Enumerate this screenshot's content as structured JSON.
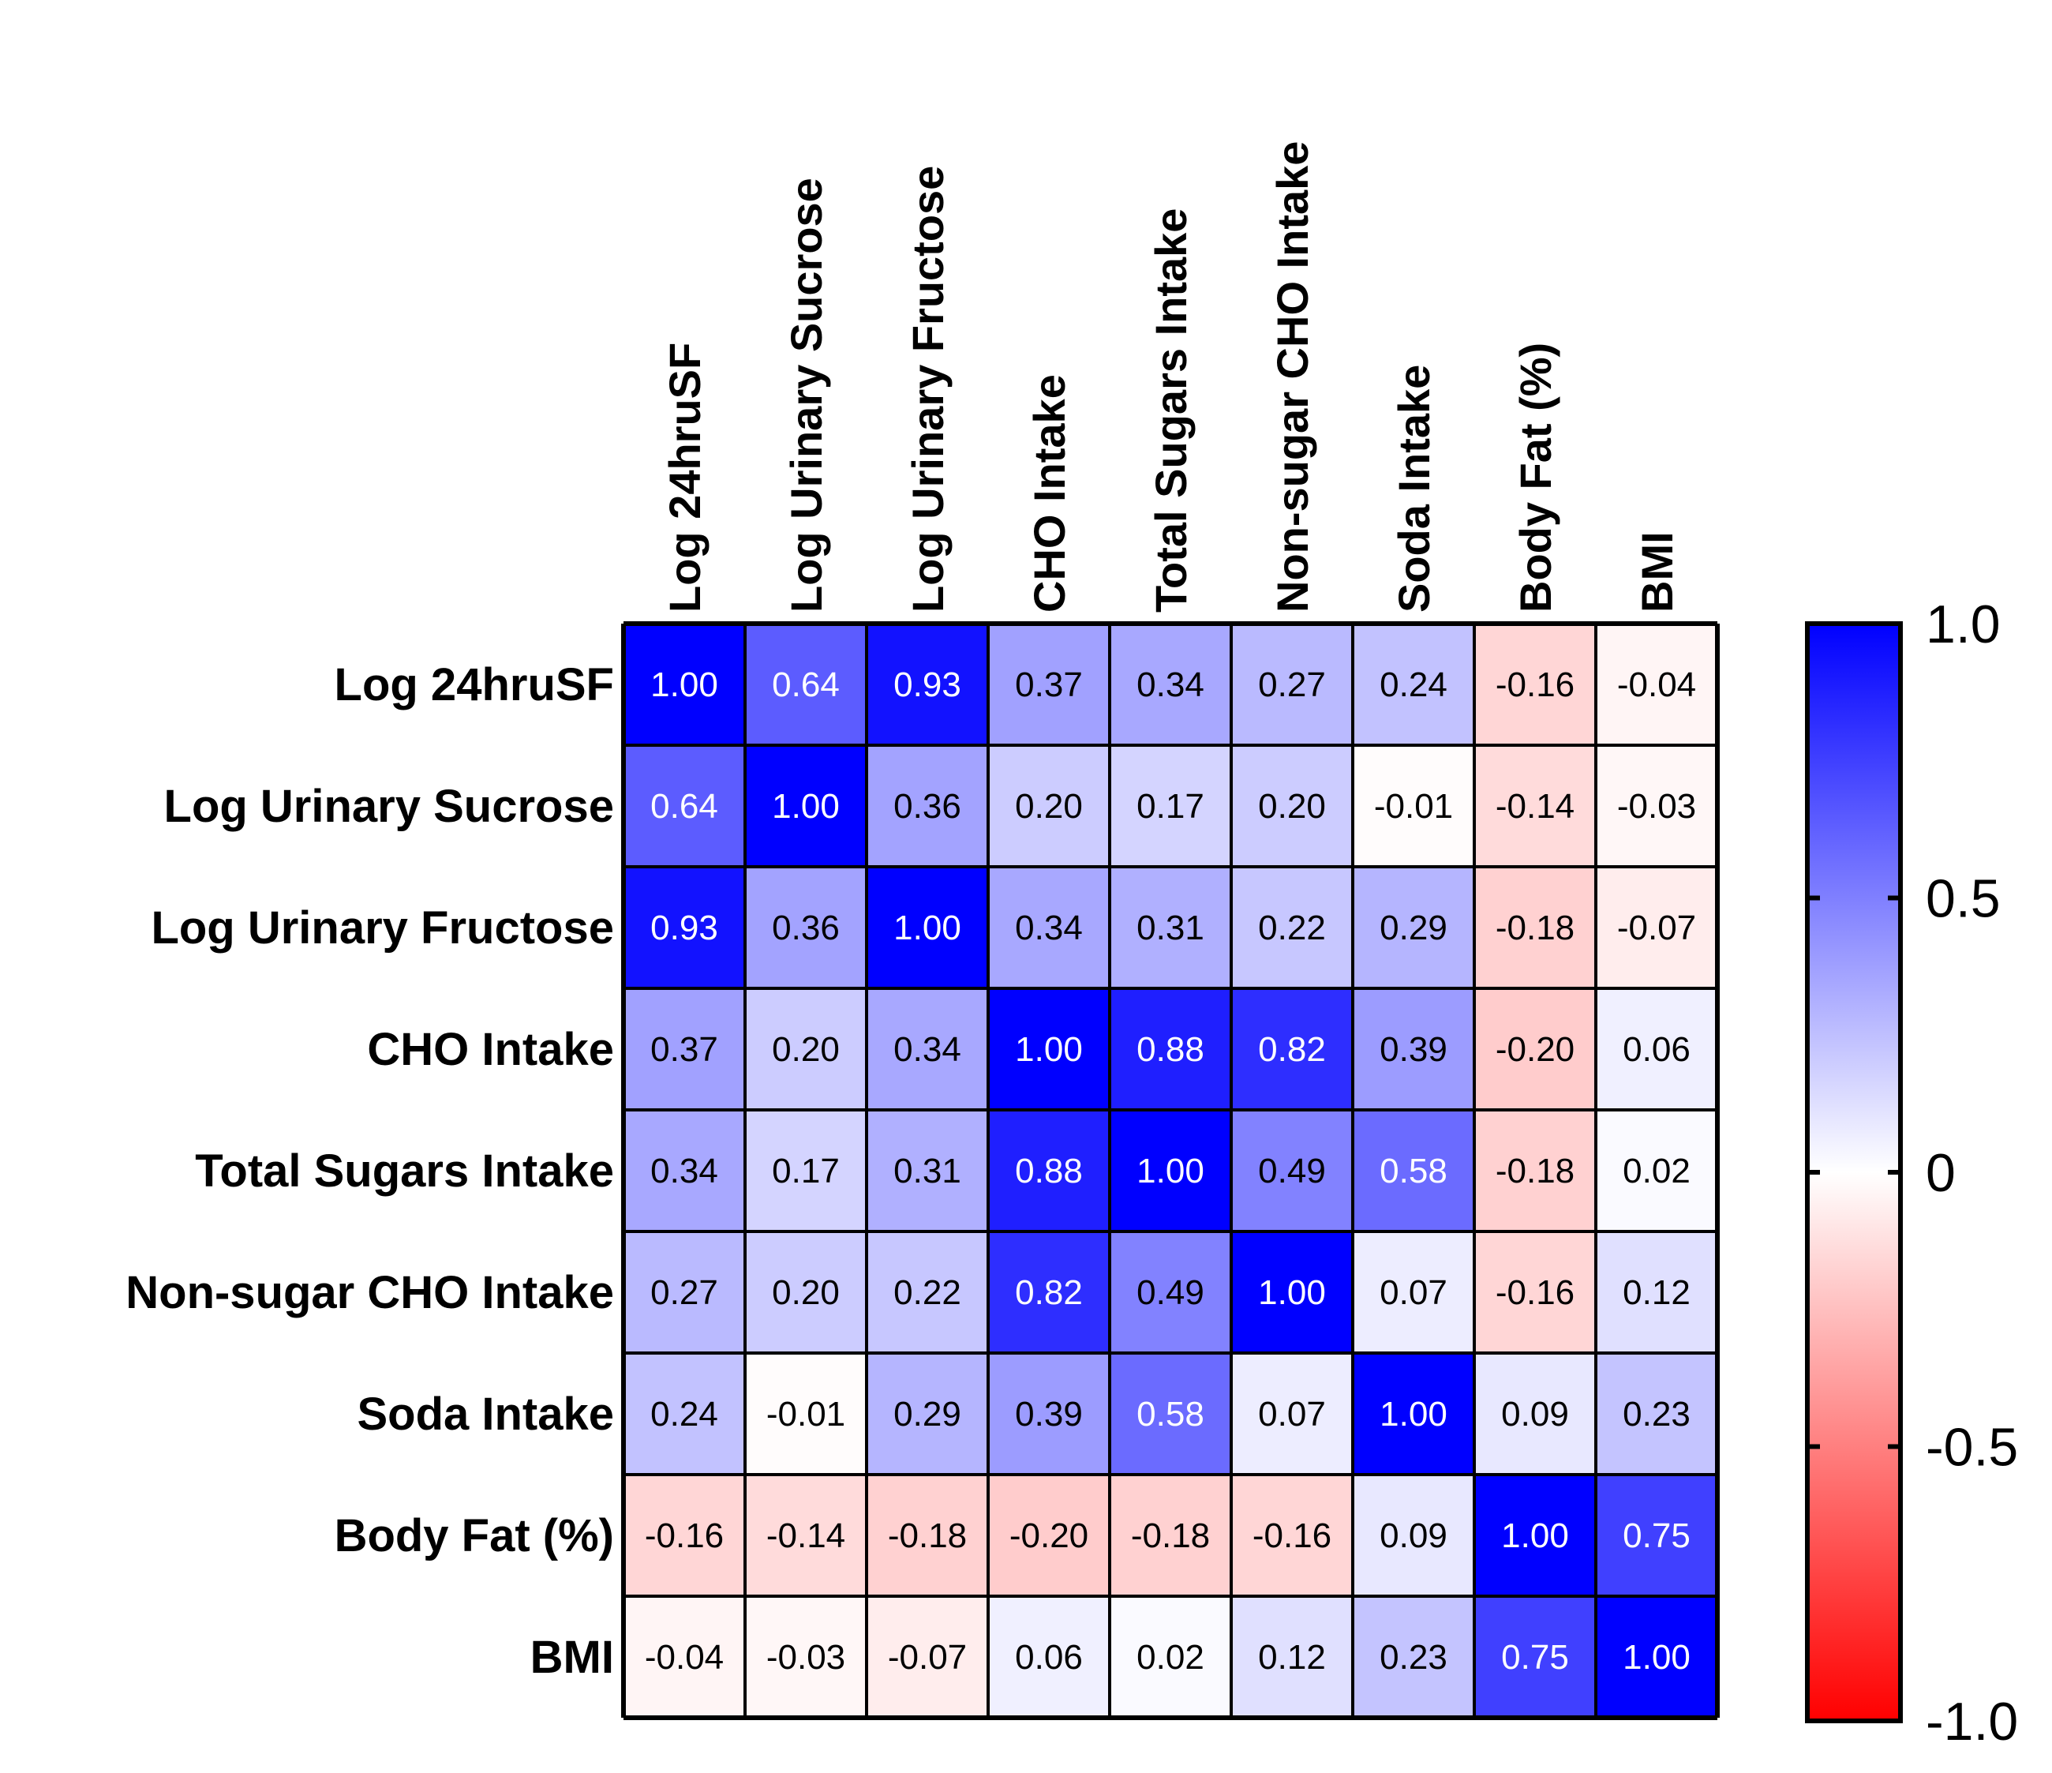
{
  "chart_data": {
    "type": "heatmap",
    "title": "",
    "row_labels": [
      "Log 24hruSF",
      "Log Urinary Sucrose",
      "Log Urinary Fructose",
      "CHO Intake",
      "Total Sugars Intake",
      "Non-sugar CHO Intake",
      "Soda Intake",
      "Body Fat (%)",
      "BMI"
    ],
    "column_labels": [
      "Log 24hruSF",
      "Log Urinary Sucrose",
      "Log Urinary Fructose",
      "CHO Intake",
      "Total Sugars Intake",
      "Non-sugar CHO Intake",
      "Soda Intake",
      "Body Fat (%)",
      "BMI"
    ],
    "values": [
      [
        1.0,
        0.64,
        0.93,
        0.37,
        0.34,
        0.27,
        0.24,
        -0.16,
        -0.04
      ],
      [
        0.64,
        1.0,
        0.36,
        0.2,
        0.17,
        0.2,
        -0.01,
        -0.14,
        -0.03
      ],
      [
        0.93,
        0.36,
        1.0,
        0.34,
        0.31,
        0.22,
        0.29,
        -0.18,
        -0.07
      ],
      [
        0.37,
        0.2,
        0.34,
        1.0,
        0.88,
        0.82,
        0.39,
        -0.2,
        0.06
      ],
      [
        0.34,
        0.17,
        0.31,
        0.88,
        1.0,
        0.49,
        0.58,
        -0.18,
        0.02
      ],
      [
        0.27,
        0.2,
        0.22,
        0.82,
        0.49,
        1.0,
        0.07,
        -0.16,
        0.12
      ],
      [
        0.24,
        -0.01,
        0.29,
        0.39,
        0.58,
        0.07,
        1.0,
        0.09,
        0.23
      ],
      [
        -0.16,
        -0.14,
        -0.18,
        -0.2,
        -0.18,
        -0.16,
        0.09,
        1.0,
        0.75
      ],
      [
        -0.04,
        -0.03,
        -0.07,
        0.06,
        0.02,
        0.12,
        0.23,
        0.75,
        1.0
      ]
    ],
    "value_labels": [
      [
        "1.00",
        "0.64",
        "0.93",
        "0.37",
        "0.34",
        "0.27",
        "0.24",
        "-0.16",
        "-0.04"
      ],
      [
        "0.64",
        "1.00",
        "0.36",
        "0.20",
        "0.17",
        "0.20",
        "-0.01",
        "-0.14",
        "-0.03"
      ],
      [
        "0.93",
        "0.36",
        "1.00",
        "0.34",
        "0.31",
        "0.22",
        "0.29",
        "-0.18",
        "-0.07"
      ],
      [
        "0.37",
        "0.20",
        "0.34",
        "1.00",
        "0.88",
        "0.82",
        "0.39",
        "-0.20",
        "0.06"
      ],
      [
        "0.34",
        "0.17",
        "0.31",
        "0.88",
        "1.00",
        "0.49",
        "0.58",
        "-0.18",
        "0.02"
      ],
      [
        "0.27",
        "0.20",
        "0.22",
        "0.82",
        "0.49",
        "1.00",
        "0.07",
        "-0.16",
        "0.12"
      ],
      [
        "0.24",
        "-0.01",
        "0.29",
        "0.39",
        "0.58",
        "0.07",
        "1.00",
        "0.09",
        "0.23"
      ],
      [
        "-0.16",
        "-0.14",
        "-0.18",
        "-0.20",
        "-0.18",
        "-0.16",
        "0.09",
        "1.00",
        "0.75"
      ],
      [
        "-0.04",
        "-0.03",
        "-0.07",
        "0.06",
        "0.02",
        "0.12",
        "0.23",
        "0.75",
        "1.00"
      ]
    ],
    "colorbar": {
      "min": -1.0,
      "max": 1.0,
      "ticks": [
        1.0,
        0.5,
        0,
        -0.5,
        -1.0
      ],
      "tick_labels": [
        "1.0",
        "0.5",
        "0",
        "-0.5",
        "-1.0"
      ],
      "colors": {
        "negative": "#ff0000",
        "zero": "#ffffff",
        "positive": "#0000ff"
      }
    }
  }
}
